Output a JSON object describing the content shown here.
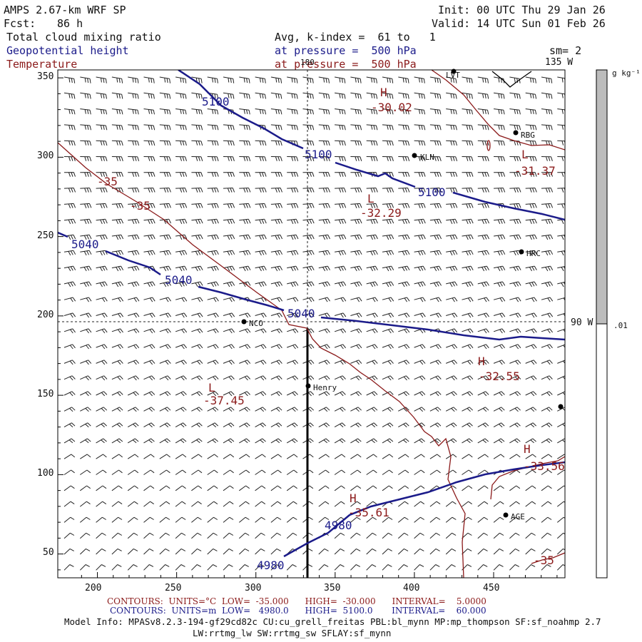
{
  "header": {
    "model": "AMPS 2.67-km WRF SP",
    "fcst_label": "Fcst:",
    "fcst_hours": "86 h",
    "init": "Init: 00 UTC Thu 29 Jan 26",
    "valid": "Valid: 14 UTC Sun 01 Feb 26",
    "field1": "Total cloud mixing ratio",
    "field2": "Geopotential height",
    "field3": "Temperature",
    "avg_line": "Avg, k-index =  61 to   1",
    "pressure_label1": "at pressure =  500 hPa",
    "pressure_label2": "at pressure =  500 hPa",
    "sm": "sm= 2"
  },
  "colorbar": {
    "units": "g kg⁻¹",
    "level_label": ".01"
  },
  "map_labels": {
    "lon_180": "180",
    "lon_135w": "135 W",
    "lon_90w": "90 W"
  },
  "stations": [
    {
      "name": "LVT"
    },
    {
      "name": "RBG"
    },
    {
      "name": "KLN"
    },
    {
      "name": "HRC"
    },
    {
      "name": "NCO"
    },
    {
      "name": "Henry"
    },
    {
      "name": "AGE"
    },
    {
      "name": ""
    }
  ],
  "height_contours": [
    "5100",
    "5100",
    "5100",
    "5040",
    "5040",
    "5040",
    "4980",
    "4980"
  ],
  "temp_labels": [
    {
      "text": "H",
      "value": "-30.02"
    },
    {
      "text": "L",
      "value": "-31.37"
    },
    {
      "text": "L",
      "value": "-32.29"
    },
    {
      "text": "H",
      "value": "-32.55"
    },
    {
      "text": "L",
      "value": "-37.45"
    },
    {
      "text": "H",
      "value": "-33.56"
    },
    {
      "text": "H",
      "value": "-35.61"
    }
  ],
  "temp_contour_values": [
    "-35",
    "-35",
    "-35"
  ],
  "axes": {
    "x_ticks": [
      "200",
      "250",
      "300",
      "350",
      "400",
      "450"
    ],
    "y_ticks": [
      "350",
      "300",
      "250",
      "200",
      "150",
      "100",
      "50"
    ]
  },
  "footer": {
    "temp_contours": "CONTOURS:  UNITS=°C  LOW=  -35.000      HIGH=  -30.000      INTERVAL=    5.0000",
    "height_contours": "CONTOURS:  UNITS=m  LOW=   4980.0      HIGH=  5100.0       INTERVAL=    60.000",
    "model_info": "Model Info: MPASv8.2.3-194-gf29cd82c CU:cu_grell_freitas PBL:bl_mynn MP:mp_thompson SF:sf_noahmp 2.7",
    "model_info2": "LW:rrtmg_lw SW:rrtmg_sw SFLAY:sf_mynn"
  },
  "colors": {
    "height": "#1b1b8a",
    "temperature": "#8b1a1a",
    "colorbar_gray": "#bcbcbc"
  }
}
